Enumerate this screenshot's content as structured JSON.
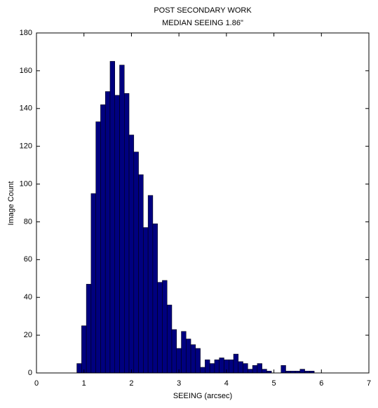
{
  "chart_data": {
    "type": "histogram",
    "title": "POST SECONDARY WORK",
    "subtitle": "MEDIAN SEEING 1.86\"",
    "xlabel": "SEEING (arcsec)",
    "ylabel": "Image Count",
    "bins": [
      0.85,
      0.95,
      1.05,
      1.15,
      1.25,
      1.35,
      1.45,
      1.55,
      1.65,
      1.75,
      1.85,
      1.95,
      2.05,
      2.15,
      2.25,
      2.35,
      2.45,
      2.55,
      2.65,
      2.75,
      2.85,
      2.95,
      3.05,
      3.15,
      3.25,
      3.35,
      3.45,
      3.55,
      3.65,
      3.75,
      3.85,
      3.95,
      4.05,
      4.15,
      4.25,
      4.35,
      4.45,
      4.55,
      4.65,
      4.75,
      4.85,
      4.95,
      5.05,
      5.15,
      5.25,
      5.35,
      5.45,
      5.55,
      5.65,
      5.75,
      5.85
    ],
    "values": [
      5,
      25,
      47,
      95,
      133,
      142,
      149,
      165,
      147,
      163,
      148,
      126,
      117,
      105,
      77,
      94,
      79,
      48,
      49,
      36,
      23,
      13,
      22,
      18,
      15,
      13,
      3,
      7,
      5,
      7,
      8,
      7,
      7,
      10,
      6,
      5,
      2,
      4,
      5,
      2,
      1,
      0,
      0,
      4,
      1,
      1,
      1,
      2,
      1,
      1
    ],
    "color": "#00007f",
    "xlim": [
      0,
      7
    ],
    "xticks": [
      0,
      1,
      2,
      3,
      4,
      5,
      6,
      7
    ],
    "ylim": [
      0,
      180
    ],
    "yticks": [
      0,
      20,
      40,
      60,
      80,
      100,
      120,
      140,
      160,
      180
    ]
  }
}
